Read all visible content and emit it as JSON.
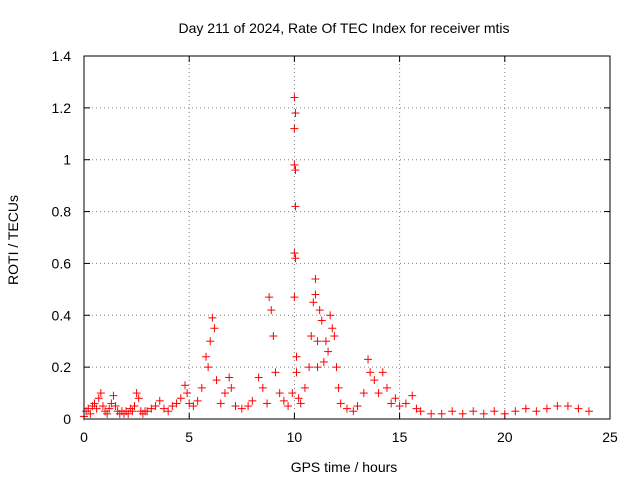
{
  "chart_data": {
    "type": "scatter",
    "title": "Day 211 of 2024, Rate Of TEC Index for receiver mtis",
    "xlabel": "GPS time / hours",
    "ylabel": "ROTI / TECUs",
    "xlim": [
      0,
      25
    ],
    "ylim": [
      0,
      1.4
    ],
    "xticks": [
      0,
      5,
      10,
      15,
      20,
      25
    ],
    "yticks": [
      0,
      0.2,
      0.4,
      0.6,
      0.8,
      1,
      1.2,
      1.4
    ],
    "xtick_labels": [
      "0",
      "5",
      "10",
      "15",
      "20",
      "25"
    ],
    "ytick_labels": [
      "0",
      "0.2",
      "0.4",
      "0.6",
      "0.8",
      "1",
      "1.2",
      "1.4"
    ],
    "grid": true,
    "marker": "+",
    "series": [
      {
        "name": "ROTI",
        "color": "#ff0000",
        "x": [
          0.0,
          0.1,
          0.2,
          0.3,
          0.4,
          0.5,
          0.6,
          0.7,
          0.8,
          0.9,
          1.0,
          1.1,
          1.2,
          1.3,
          1.4,
          1.5,
          1.6,
          1.7,
          1.8,
          1.9,
          2.0,
          2.1,
          2.2,
          2.3,
          2.4,
          2.5,
          2.6,
          2.7,
          2.8,
          2.9,
          3.0,
          3.2,
          3.4,
          3.6,
          3.8,
          4.0,
          4.2,
          4.4,
          4.6,
          4.8,
          4.9,
          5.0,
          5.2,
          5.4,
          5.6,
          5.8,
          5.9,
          6.0,
          6.1,
          6.2,
          6.3,
          6.5,
          6.7,
          6.9,
          7.0,
          7.2,
          7.5,
          7.8,
          8.0,
          8.3,
          8.5,
          8.7,
          8.8,
          8.9,
          9.0,
          9.1,
          9.3,
          9.5,
          9.7,
          9.9,
          10.0,
          10.0,
          10.0,
          10.0,
          10.0,
          10.05,
          10.05,
          10.05,
          10.05,
          10.1,
          10.1,
          10.2,
          10.3,
          10.5,
          10.7,
          10.8,
          10.9,
          11.0,
          11.0,
          11.1,
          11.1,
          11.2,
          11.3,
          11.4,
          11.5,
          11.6,
          11.7,
          11.8,
          11.9,
          12.0,
          12.1,
          12.2,
          12.5,
          12.8,
          13.0,
          13.3,
          13.5,
          13.6,
          13.8,
          14.0,
          14.2,
          14.4,
          14.6,
          14.8,
          15.0,
          15.3,
          15.6,
          15.8,
          16.0,
          16.5,
          17.0,
          17.5,
          18.0,
          18.5,
          19.0,
          19.5,
          20.0,
          20.5,
          21.0,
          21.5,
          22.0,
          22.5,
          23.0,
          23.5,
          24.0
        ],
        "y": [
          0.01,
          0.03,
          0.04,
          0.02,
          0.05,
          0.06,
          0.04,
          0.08,
          0.1,
          0.05,
          0.03,
          0.02,
          0.04,
          0.06,
          0.09,
          0.05,
          0.03,
          0.02,
          0.03,
          0.02,
          0.03,
          0.02,
          0.04,
          0.03,
          0.05,
          0.1,
          0.08,
          0.03,
          0.02,
          0.03,
          0.03,
          0.04,
          0.05,
          0.07,
          0.04,
          0.03,
          0.05,
          0.06,
          0.08,
          0.13,
          0.1,
          0.06,
          0.05,
          0.07,
          0.12,
          0.24,
          0.2,
          0.3,
          0.39,
          0.35,
          0.15,
          0.06,
          0.1,
          0.16,
          0.12,
          0.05,
          0.04,
          0.05,
          0.07,
          0.16,
          0.12,
          0.06,
          0.47,
          0.42,
          0.32,
          0.18,
          0.1,
          0.07,
          0.05,
          0.1,
          0.47,
          0.64,
          0.98,
          1.12,
          1.24,
          0.82,
          0.62,
          0.96,
          1.18,
          0.24,
          0.18,
          0.08,
          0.06,
          0.12,
          0.2,
          0.32,
          0.45,
          0.54,
          0.48,
          0.3,
          0.2,
          0.42,
          0.38,
          0.22,
          0.3,
          0.26,
          0.4,
          0.35,
          0.32,
          0.2,
          0.12,
          0.06,
          0.04,
          0.03,
          0.05,
          0.1,
          0.23,
          0.18,
          0.15,
          0.1,
          0.18,
          0.12,
          0.06,
          0.08,
          0.05,
          0.06,
          0.09,
          0.04,
          0.03,
          0.02,
          0.02,
          0.03,
          0.02,
          0.03,
          0.02,
          0.03,
          0.02,
          0.03,
          0.04,
          0.03,
          0.04,
          0.05,
          0.05,
          0.04,
          0.03
        ]
      }
    ]
  }
}
